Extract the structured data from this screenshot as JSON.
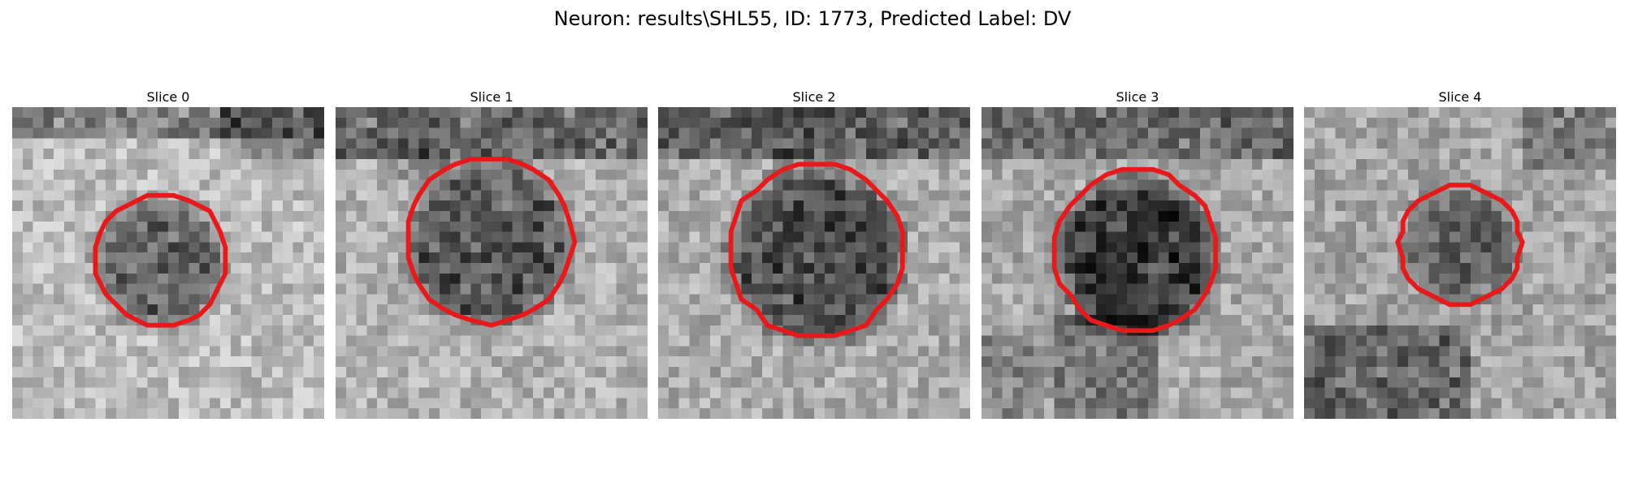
{
  "title": "Neuron: results\\SHL55, ID: 1773, Predicted Label: DV",
  "outline_color": "#e8191b",
  "slices": [
    {
      "label": "Slice 0"
    },
    {
      "label": "Slice 1"
    },
    {
      "label": "Slice 2"
    },
    {
      "label": "Slice 3"
    },
    {
      "label": "Slice 4"
    }
  ]
}
